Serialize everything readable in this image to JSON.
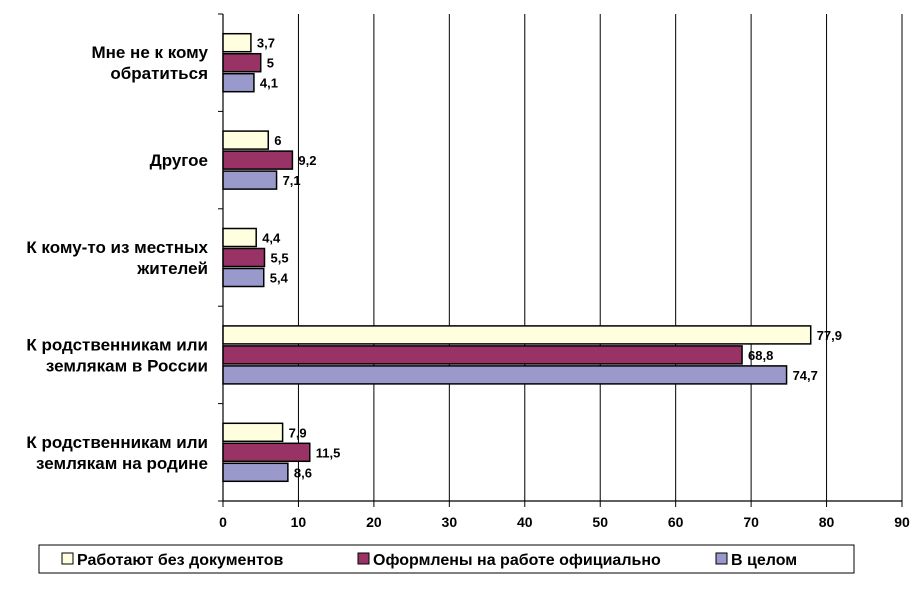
{
  "chart_data": {
    "type": "bar",
    "orientation": "horizontal",
    "categories": [
      [
        "Мне не к кому",
        "обратиться"
      ],
      [
        "Другое"
      ],
      [
        "К кому-то из местных",
        "жителей"
      ],
      [
        "К родственникам или",
        "землякам в России"
      ],
      [
        "К родственникам или",
        "землякам на родине"
      ]
    ],
    "series": [
      {
        "name": "Работают без документов",
        "color": "#ffffe0",
        "values": [
          3.7,
          6,
          4.4,
          77.9,
          7.9
        ],
        "labels": [
          "3,7",
          "6",
          "4,4",
          "77,9",
          "7,9"
        ]
      },
      {
        "name": "Оформлены на работе официально",
        "color": "#993366",
        "values": [
          5,
          9.2,
          5.5,
          68.8,
          11.5
        ],
        "labels": [
          "5",
          "9,2",
          "5,5",
          "68,8",
          "11,5"
        ]
      },
      {
        "name": "В целом",
        "color": "#9999cc",
        "values": [
          4.1,
          7.1,
          5.4,
          74.7,
          8.6
        ],
        "labels": [
          "4,1",
          "7,1",
          "5,4",
          "74,7",
          "8,6"
        ]
      }
    ],
    "xlim": [
      0,
      90
    ],
    "xticks": [
      0,
      10,
      20,
      30,
      40,
      50,
      60,
      70,
      80,
      90
    ],
    "grid": true,
    "legend_position": "bottom"
  }
}
